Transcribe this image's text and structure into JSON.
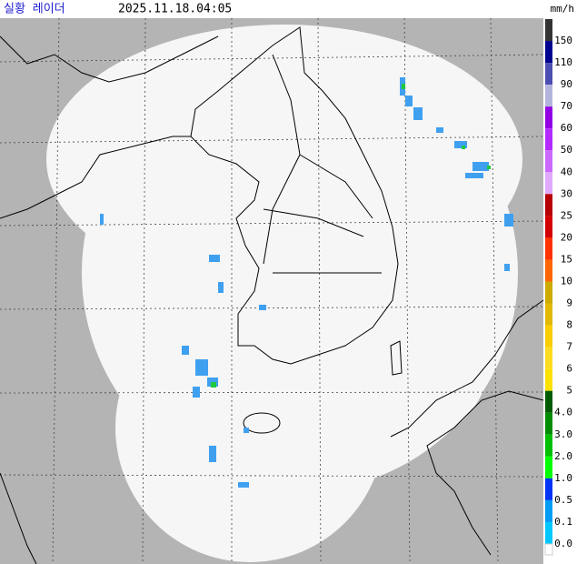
{
  "header": {
    "title": "실황 레이더",
    "timestamp": "2025.11.18.04:05",
    "unit": "mm/h"
  },
  "legend": {
    "items": [
      {
        "label": "150",
        "color": "#333333"
      },
      {
        "label": "110",
        "color": "#000390"
      },
      {
        "label": "90",
        "color": "#4c4eb1"
      },
      {
        "label": "70",
        "color": "#b3b4de"
      },
      {
        "label": "60",
        "color": "#9300e4"
      },
      {
        "label": "50",
        "color": "#b329ff"
      },
      {
        "label": "40",
        "color": "#c969ff"
      },
      {
        "label": "30",
        "color": "#e0a9ff"
      },
      {
        "label": "25",
        "color": "#b40000"
      },
      {
        "label": "20",
        "color": "#d20000"
      },
      {
        "label": "15",
        "color": "#ff3200"
      },
      {
        "label": "10",
        "color": "#ff6600"
      },
      {
        "label": "9",
        "color": "#ccaa00"
      },
      {
        "label": "8",
        "color": "#e0b900"
      },
      {
        "label": "7",
        "color": "#f9cd00"
      },
      {
        "label": "6",
        "color": "#ffdc1f"
      },
      {
        "label": "5",
        "color": "#ffe100"
      },
      {
        "label": "4.0",
        "color": "#005a00"
      },
      {
        "label": "3.0",
        "color": "#008c00"
      },
      {
        "label": "2.0",
        "color": "#00be00"
      },
      {
        "label": "1.0",
        "color": "#00ff00"
      },
      {
        "label": "0.5",
        "color": "#0033f5"
      },
      {
        "label": "0.1",
        "color": "#009bf5"
      },
      {
        "label": "0.0",
        "color": "#00c8ff"
      }
    ]
  }
}
